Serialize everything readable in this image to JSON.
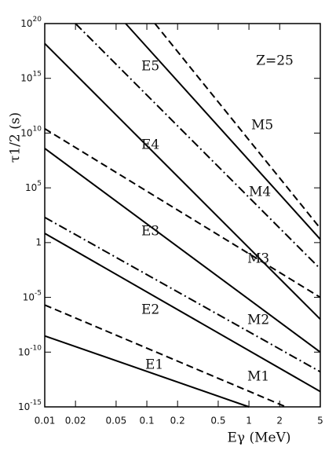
{
  "chart_data": {
    "type": "line",
    "annotation": "Z=25",
    "x_label": "Eγ (MeV)",
    "y_label": "τ1/2 (s)",
    "log_x": true,
    "log_y": true,
    "xlim": [
      0.01,
      5
    ],
    "ylim": [
      1e-15,
      1e+20
    ],
    "xticks": [
      0.01,
      0.02,
      0.05,
      0.1,
      0.2,
      0.5,
      1,
      2,
      5
    ],
    "yticks": [
      {
        "value": 1e-15,
        "label": "10^-15"
      },
      {
        "value": 1e-10,
        "label": "10^-10"
      },
      {
        "value": 1e-05,
        "label": "10^-5"
      },
      1,
      {
        "value": 100000.0,
        "label": "10^5"
      },
      {
        "value": 10000000000.0,
        "label": "10^10"
      },
      {
        "value": 1000000000000000.0,
        "label": "10^15"
      },
      {
        "value": 1e+20,
        "label": "10^20"
      }
    ],
    "series": [
      {
        "name": "E1",
        "color": "#000000",
        "style": "solid",
        "x": [
          0.01,
          1
        ],
        "values": [
          3e-09,
          1e-15
        ]
      },
      {
        "name": "E2",
        "color": "#000000",
        "style": "solid",
        "x": [
          0.01,
          5
        ],
        "values": [
          7,
          2.5e-14
        ]
      },
      {
        "name": "E3",
        "color": "#000000",
        "style": "solid",
        "x": [
          0.01,
          5
        ],
        "values": [
          400000000.0,
          1e-10
        ]
      },
      {
        "name": "E4",
        "color": "#000000",
        "style": "solid",
        "x": [
          0.01,
          5
        ],
        "values": [
          1.5e+18,
          1e-07
        ]
      },
      {
        "name": "E5",
        "color": "#000000",
        "style": "solid",
        "x": [
          0.062,
          5
        ],
        "values": [
          1e+20,
          2
        ]
      },
      {
        "name": "M1",
        "color": "#000000",
        "style": "dashed",
        "x": [
          0.01,
          2.3
        ],
        "values": [
          2e-06,
          1e-15
        ]
      },
      {
        "name": "M2",
        "color": "#000000",
        "style": "dashdot",
        "x": [
          0.01,
          5
        ],
        "values": [
          200,
          1.6e-12
        ]
      },
      {
        "name": "M3",
        "color": "#000000",
        "style": "dashed",
        "x": [
          0.01,
          5
        ],
        "values": [
          25000000000.0,
          1e-05
        ]
      },
      {
        "name": "M4",
        "color": "#000000",
        "style": "dashdot",
        "x": [
          0.02,
          5
        ],
        "values": [
          1e+20,
          0.004
        ]
      },
      {
        "name": "M5",
        "color": "#000000",
        "style": "dashed",
        "x": [
          0.12,
          5
        ],
        "values": [
          1e+20,
          20
        ]
      }
    ]
  }
}
